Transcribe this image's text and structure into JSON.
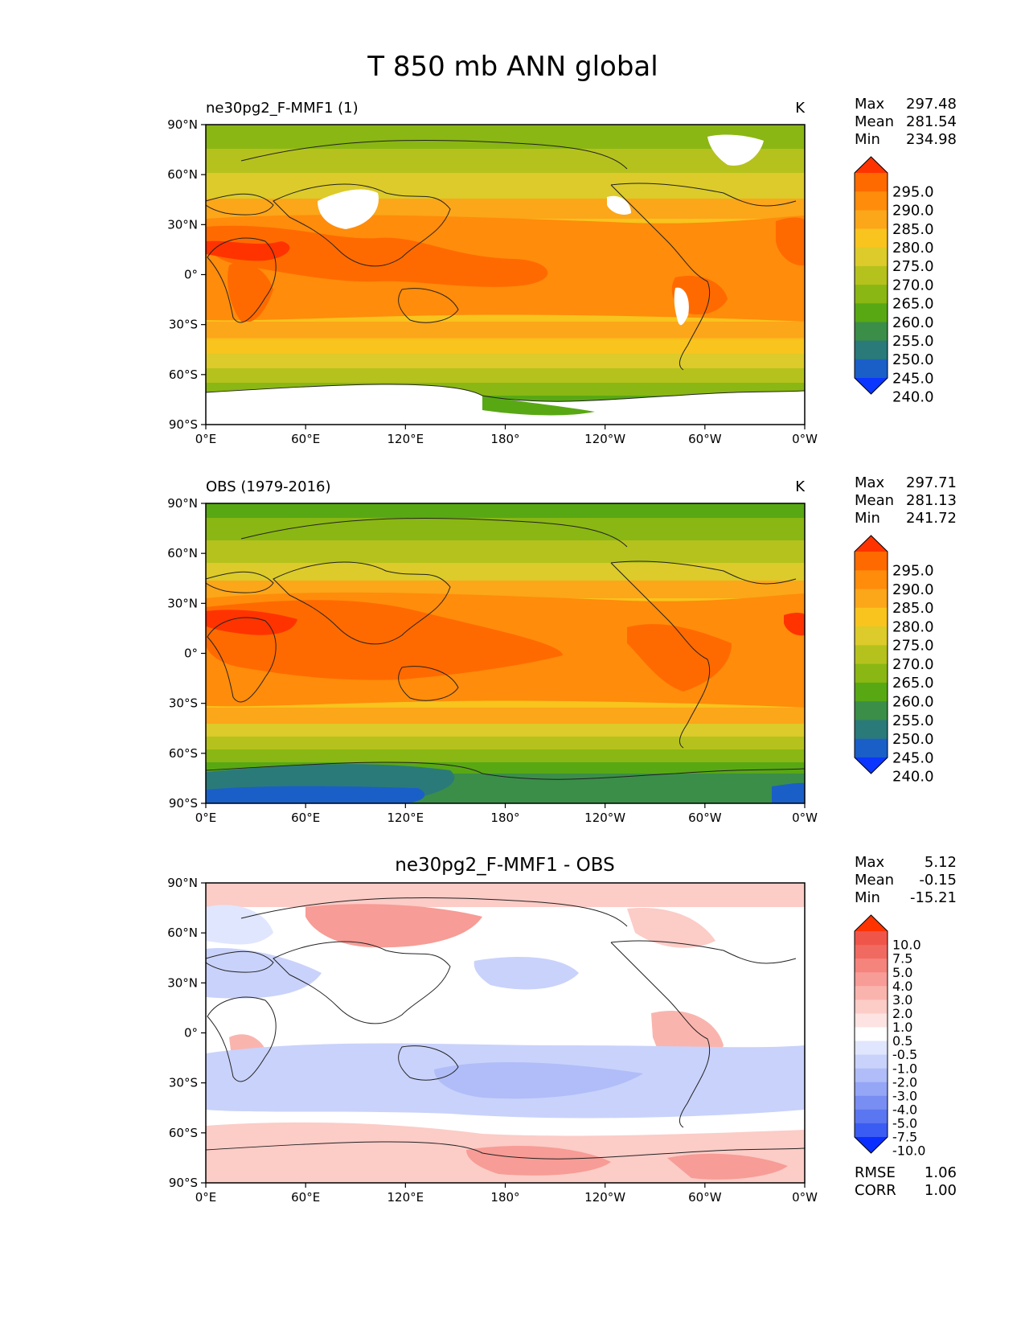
{
  "title": "T 850 mb ANN global",
  "panels": [
    {
      "id": "test",
      "left_title": "ne30pg2_F-MMF1 (1)",
      "center_title": "",
      "units": "K",
      "stats": [
        {
          "label": "Max",
          "value": "297.48"
        },
        {
          "label": "Mean",
          "value": "281.54"
        },
        {
          "label": "Min",
          "value": "234.98"
        }
      ],
      "colorbar": {
        "labels": [
          "295.0",
          "290.0",
          "285.0",
          "280.0",
          "275.0",
          "270.0",
          "265.0",
          "260.0",
          "255.0",
          "250.0",
          "245.0",
          "240.0"
        ],
        "colors": [
          "#ff3300",
          "#ff6a00",
          "#ff8c0a",
          "#fca61a",
          "#f8c41d",
          "#dccb2a",
          "#b5c21d",
          "#8ab713",
          "#58a814",
          "#3b8e48",
          "#2a7a7a",
          "#1a5fc8",
          "#0a36ff"
        ]
      }
    },
    {
      "id": "obs",
      "left_title": "OBS (1979-2016)",
      "center_title": "",
      "units": "K",
      "stats": [
        {
          "label": "Max",
          "value": "297.71"
        },
        {
          "label": "Mean",
          "value": "281.13"
        },
        {
          "label": "Min",
          "value": "241.72"
        }
      ],
      "colorbar": {
        "labels": [
          "295.0",
          "290.0",
          "285.0",
          "280.0",
          "275.0",
          "270.0",
          "265.0",
          "260.0",
          "255.0",
          "250.0",
          "245.0",
          "240.0"
        ],
        "colors": [
          "#ff3300",
          "#ff6a00",
          "#ff8c0a",
          "#fca61a",
          "#f8c41d",
          "#dccb2a",
          "#b5c21d",
          "#8ab713",
          "#58a814",
          "#3b8e48",
          "#2a7a7a",
          "#1a5fc8",
          "#0a36ff"
        ]
      }
    },
    {
      "id": "diff",
      "left_title": "",
      "center_title": "ne30pg2_F-MMF1 - OBS",
      "units": "",
      "stats": [
        {
          "label": "Max",
          "value": "5.12"
        },
        {
          "label": "Mean",
          "value": "-0.15"
        },
        {
          "label": "Min",
          "value": "-15.21"
        }
      ],
      "colorbar": {
        "labels": [
          "10.0",
          "7.5",
          "5.0",
          "4.0",
          "3.0",
          "2.0",
          "1.0",
          "0.5",
          "-0.5",
          "-1.0",
          "-2.0",
          "-3.0",
          "-4.0",
          "-5.0",
          "-7.5",
          "-10.0"
        ],
        "colors": [
          "#ff3300",
          "#f0554a",
          "#f06a62",
          "#f5847d",
          "#f79c96",
          "#fab4ae",
          "#fcccc7",
          "#fde4e2",
          "#ffffff",
          "#e0e6fd",
          "#c9d2fb",
          "#b0bdf8",
          "#95a6f6",
          "#788ef3",
          "#5a76f0",
          "#3b5cf2",
          "#0a2eff"
        ]
      },
      "extra_stats": [
        {
          "label": "RMSE",
          "value": "1.06"
        },
        {
          "label": "CORR",
          "value": "1.00"
        }
      ]
    }
  ],
  "axes": {
    "lat_ticks": [
      "90°N",
      "60°N",
      "30°N",
      "0°",
      "30°S",
      "60°S",
      "90°S"
    ],
    "lon_ticks": [
      "0°E",
      "60°E",
      "120°E",
      "180°",
      "120°W",
      "60°W",
      "0°W"
    ]
  }
}
